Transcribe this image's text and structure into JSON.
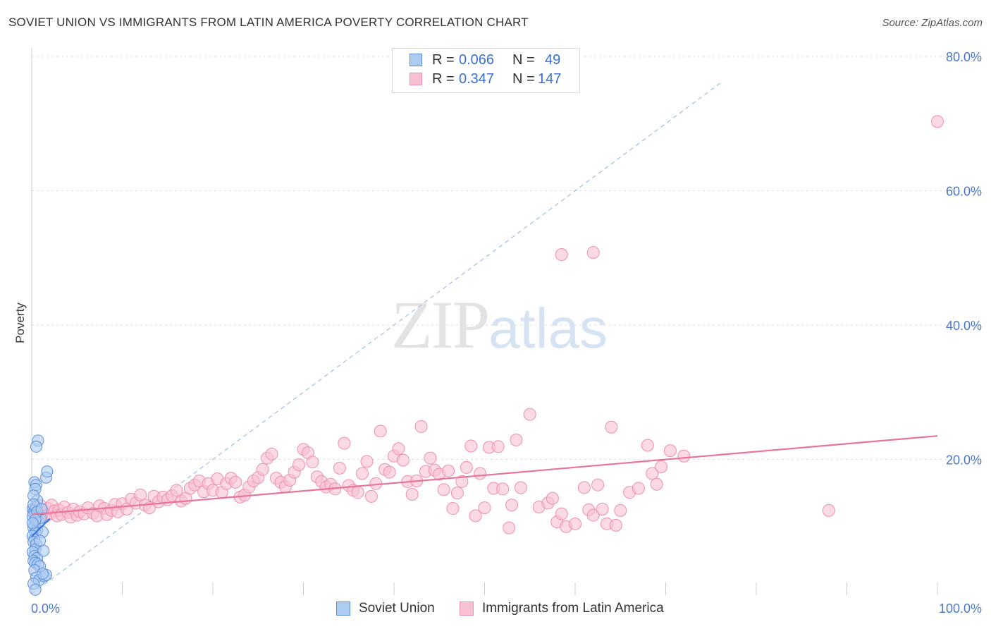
{
  "title": "SOVIET UNION VS IMMIGRANTS FROM LATIN AMERICA POVERTY CORRELATION CHART",
  "source": "Source: ZipAtlas.com",
  "watermark": {
    "zip": "ZIP",
    "atlas": "atlas"
  },
  "legend": {
    "rows": [
      {
        "r_label": "R =",
        "r_value": "0.066",
        "n_label": "N =",
        "n_value": "49"
      },
      {
        "r_label": "R =",
        "r_value": "0.347",
        "n_label": "N =",
        "n_value": "147"
      }
    ]
  },
  "bottom_legend": [
    "Soviet Union",
    "Immigrants from Latin America"
  ],
  "colors": {
    "soviet_fill": "#aecbf2",
    "soviet_stroke": "#5b8fd8",
    "soviet_line": "#3a78d8",
    "latin_fill": "#f8c1d2",
    "latin_stroke": "#ee8fad",
    "latin_line": "#e8749a",
    "grid": "#dddddd",
    "axis_text": "#4a78c8"
  },
  "chart_data": {
    "type": "scatter",
    "title": "SOVIET UNION VS IMMIGRANTS FROM LATIN AMERICA POVERTY CORRELATION CHART",
    "xlabel": "",
    "ylabel": "Poverty",
    "xlim": [
      0,
      100
    ],
    "ylim": [
      0,
      80
    ],
    "x_tick_labels": [
      "0.0%",
      "100.0%"
    ],
    "y_ticks": [
      20,
      40,
      60,
      80
    ],
    "y_tick_labels": [
      "20.0%",
      "40.0%",
      "60.0%",
      "80.0%"
    ],
    "grid": true,
    "legend_position": "top-center",
    "series": [
      {
        "name": "Soviet Union",
        "R": 0.066,
        "N": 49,
        "trend": {
          "x": [
            0,
            2.0
          ],
          "y": [
            8.5,
            11.2
          ]
        },
        "points": [
          [
            0.1,
            12.6
          ],
          [
            0.3,
            12.4
          ],
          [
            0.2,
            12.0
          ],
          [
            0.4,
            11.8
          ],
          [
            0.1,
            11.5
          ],
          [
            0.5,
            12.9
          ],
          [
            0.3,
            10.2
          ],
          [
            0.2,
            9.8
          ],
          [
            0.6,
            9.5
          ],
          [
            0.4,
            9.1
          ],
          [
            0.1,
            8.6
          ],
          [
            0.3,
            8.1
          ],
          [
            0.2,
            7.7
          ],
          [
            0.5,
            7.4
          ],
          [
            0.4,
            6.6
          ],
          [
            0.1,
            6.2
          ],
          [
            0.3,
            5.6
          ],
          [
            0.6,
            5.3
          ],
          [
            0.2,
            4.9
          ],
          [
            0.4,
            4.6
          ],
          [
            0.7,
            4.4
          ],
          [
            0.9,
            4.1
          ],
          [
            0.3,
            3.5
          ],
          [
            0.5,
            2.4
          ],
          [
            0.8,
            2.0
          ],
          [
            1.4,
            2.6
          ],
          [
            1.6,
            2.8
          ],
          [
            1.2,
            3.0
          ],
          [
            0.2,
            1.5
          ],
          [
            0.4,
            0.6
          ],
          [
            0.3,
            16.6
          ],
          [
            0.5,
            16.2
          ],
          [
            0.4,
            15.6
          ],
          [
            0.6,
            13.9
          ],
          [
            0.2,
            14.6
          ],
          [
            1.6,
            17.3
          ],
          [
            1.7,
            18.2
          ],
          [
            0.7,
            22.8
          ],
          [
            0.5,
            21.9
          ],
          [
            1.2,
            9.2
          ],
          [
            1.3,
            6.4
          ],
          [
            0.9,
            7.9
          ],
          [
            0.8,
            10.7
          ],
          [
            1.0,
            11.3
          ],
          [
            0.2,
            13.3
          ],
          [
            0.6,
            12.2
          ],
          [
            1.1,
            12.6
          ],
          [
            0.4,
            11.0
          ],
          [
            0.1,
            10.5
          ]
        ]
      },
      {
        "name": "Immigrants from Latin America",
        "R": 0.347,
        "N": 147,
        "trend": {
          "x": [
            0,
            100
          ],
          "y": [
            11.8,
            23.5
          ]
        },
        "points": [
          [
            0.5,
            12.4
          ],
          [
            1.0,
            13.1
          ],
          [
            1.2,
            12.0
          ],
          [
            1.5,
            11.5
          ],
          [
            1.8,
            12.7
          ],
          [
            2.0,
            11.9
          ],
          [
            2.2,
            13.2
          ],
          [
            2.5,
            12.3
          ],
          [
            2.8,
            11.6
          ],
          [
            3.0,
            12.5
          ],
          [
            3.3,
            11.8
          ],
          [
            3.6,
            12.9
          ],
          [
            4.0,
            12.1
          ],
          [
            4.3,
            11.4
          ],
          [
            4.6,
            12.6
          ],
          [
            5.0,
            11.7
          ],
          [
            5.3,
            12.2
          ],
          [
            5.8,
            11.9
          ],
          [
            6.2,
            12.8
          ],
          [
            6.8,
            12.0
          ],
          [
            7.2,
            11.6
          ],
          [
            7.5,
            13.1
          ],
          [
            8.0,
            12.7
          ],
          [
            8.3,
            11.8
          ],
          [
            8.8,
            12.4
          ],
          [
            9.2,
            13.3
          ],
          [
            9.5,
            12.2
          ],
          [
            10.0,
            13.4
          ],
          [
            10.5,
            12.6
          ],
          [
            11.0,
            14.1
          ],
          [
            11.5,
            13.5
          ],
          [
            12.0,
            14.7
          ],
          [
            12.5,
            13.2
          ],
          [
            13.0,
            12.8
          ],
          [
            13.5,
            14.5
          ],
          [
            14.0,
            13.7
          ],
          [
            14.5,
            14.4
          ],
          [
            15.0,
            14.0
          ],
          [
            15.5,
            14.6
          ],
          [
            16.0,
            15.4
          ],
          [
            16.5,
            13.8
          ],
          [
            17.0,
            14.2
          ],
          [
            17.5,
            15.7
          ],
          [
            18.0,
            16.2
          ],
          [
            18.5,
            16.8
          ],
          [
            19.0,
            15.2
          ],
          [
            19.5,
            16.4
          ],
          [
            20.0,
            15.4
          ],
          [
            20.5,
            17.1
          ],
          [
            21.0,
            15.1
          ],
          [
            21.5,
            16.4
          ],
          [
            22.0,
            17.2
          ],
          [
            22.5,
            16.6
          ],
          [
            23.0,
            14.4
          ],
          [
            23.5,
            14.7
          ],
          [
            24.0,
            15.9
          ],
          [
            24.5,
            16.8
          ],
          [
            25.0,
            17.3
          ],
          [
            25.5,
            18.5
          ],
          [
            26.0,
            20.2
          ],
          [
            26.5,
            20.8
          ],
          [
            27.0,
            17.2
          ],
          [
            27.5,
            16.6
          ],
          [
            28.0,
            15.9
          ],
          [
            28.5,
            16.9
          ],
          [
            29.0,
            18.1
          ],
          [
            29.5,
            19.2
          ],
          [
            30.0,
            21.5
          ],
          [
            30.5,
            21.0
          ],
          [
            31.0,
            19.6
          ],
          [
            31.5,
            17.4
          ],
          [
            32.0,
            16.7
          ],
          [
            32.5,
            15.9
          ],
          [
            33.0,
            16.3
          ],
          [
            33.5,
            15.6
          ],
          [
            34.0,
            18.7
          ],
          [
            34.5,
            22.4
          ],
          [
            35.0,
            16.1
          ],
          [
            35.5,
            15.4
          ],
          [
            36.0,
            15.1
          ],
          [
            36.5,
            17.9
          ],
          [
            37.0,
            19.7
          ],
          [
            37.5,
            14.5
          ],
          [
            38.0,
            16.4
          ],
          [
            38.5,
            24.2
          ],
          [
            39.0,
            18.5
          ],
          [
            39.5,
            18.1
          ],
          [
            40.0,
            20.5
          ],
          [
            40.5,
            21.6
          ],
          [
            41.0,
            19.9
          ],
          [
            41.5,
            16.7
          ],
          [
            42.0,
            14.8
          ],
          [
            42.5,
            16.8
          ],
          [
            43.0,
            24.9
          ],
          [
            43.5,
            18.2
          ],
          [
            44.0,
            20.2
          ],
          [
            44.5,
            18.4
          ],
          [
            45.0,
            17.8
          ],
          [
            45.5,
            15.5
          ],
          [
            46.0,
            18.3
          ],
          [
            46.5,
            12.7
          ],
          [
            47.0,
            15.0
          ],
          [
            47.5,
            16.7
          ],
          [
            48.0,
            18.8
          ],
          [
            48.5,
            22.0
          ],
          [
            49.0,
            11.6
          ],
          [
            49.5,
            17.9
          ],
          [
            50.0,
            12.8
          ],
          [
            50.5,
            21.8
          ],
          [
            51.0,
            15.7
          ],
          [
            51.5,
            21.9
          ],
          [
            52.0,
            15.6
          ],
          [
            53.0,
            13.2
          ],
          [
            53.5,
            22.9
          ],
          [
            54.0,
            15.8
          ],
          [
            55.0,
            26.7
          ],
          [
            56.0,
            12.9
          ],
          [
            57.0,
            13.5
          ],
          [
            57.5,
            14.2
          ],
          [
            58.0,
            10.7
          ],
          [
            58.5,
            11.9
          ],
          [
            59.0,
            10.0
          ],
          [
            60.0,
            10.4
          ],
          [
            61.0,
            15.8
          ],
          [
            61.5,
            12.5
          ],
          [
            62.0,
            11.7
          ],
          [
            62.5,
            16.2
          ],
          [
            63.0,
            12.6
          ],
          [
            63.5,
            10.4
          ],
          [
            64.0,
            24.8
          ],
          [
            64.5,
            10.2
          ],
          [
            65.0,
            12.4
          ],
          [
            66.0,
            15.1
          ],
          [
            67.0,
            15.7
          ],
          [
            68.0,
            22.1
          ],
          [
            68.5,
            17.9
          ],
          [
            69.0,
            16.3
          ],
          [
            69.5,
            18.9
          ],
          [
            70.5,
            21.3
          ],
          [
            72.0,
            20.5
          ],
          [
            58.5,
            50.5
          ],
          [
            62.0,
            50.8
          ],
          [
            88.0,
            12.4
          ],
          [
            100.0,
            70.3
          ],
          [
            52.7,
            9.8
          ]
        ]
      }
    ]
  }
}
